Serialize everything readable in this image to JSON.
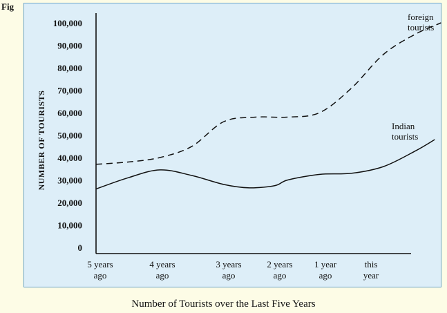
{
  "figure_label": "Fig",
  "caption": "Number of Tourists over the Last Five Years",
  "chart_data": {
    "type": "line",
    "title": "Number of Tourists over the Last Five Years",
    "xlabel": "",
    "ylabel": "NUMBER OF TOURISTS",
    "ylim": [
      0,
      100000
    ],
    "y_ticks": [
      "0",
      "10,000",
      "20,000",
      "30,000",
      "40,000",
      "50,000",
      "60,000",
      "70,000",
      "80,000",
      "90,000",
      "100,000"
    ],
    "categories": [
      [
        "5 years",
        "ago"
      ],
      [
        "4 years",
        "ago"
      ],
      [
        "3 years",
        "ago"
      ],
      [
        "2 years",
        "ago"
      ],
      [
        "1 year",
        "ago"
      ],
      [
        "this",
        "year"
      ]
    ],
    "grid": false,
    "series": [
      {
        "name": [
          "foreign",
          "tourists"
        ],
        "style": "dashed",
        "x": [
          0,
          0.5,
          1,
          1.5,
          2,
          2.5,
          3,
          3.5,
          4,
          4.5,
          5,
          5.4
        ],
        "values": [
          37000,
          38000,
          40000,
          45000,
          56000,
          58000,
          58000,
          60000,
          71000,
          86000,
          95000,
          100000
        ]
      },
      {
        "name": [
          "Indian",
          "tourists"
        ],
        "style": "solid",
        "x": [
          0,
          0.5,
          1,
          1.5,
          2,
          2.4,
          2.8,
          3,
          3.5,
          4,
          4.5,
          5,
          5.3
        ],
        "values": [
          26000,
          31000,
          34500,
          32000,
          28000,
          26500,
          27500,
          30000,
          32500,
          33000,
          36000,
          43000,
          48000
        ]
      }
    ],
    "colors": {
      "line": "#111111",
      "plot_bg": "#ddeef8",
      "page_bg": "#fdfce6",
      "border": "#6aa3c8"
    }
  }
}
